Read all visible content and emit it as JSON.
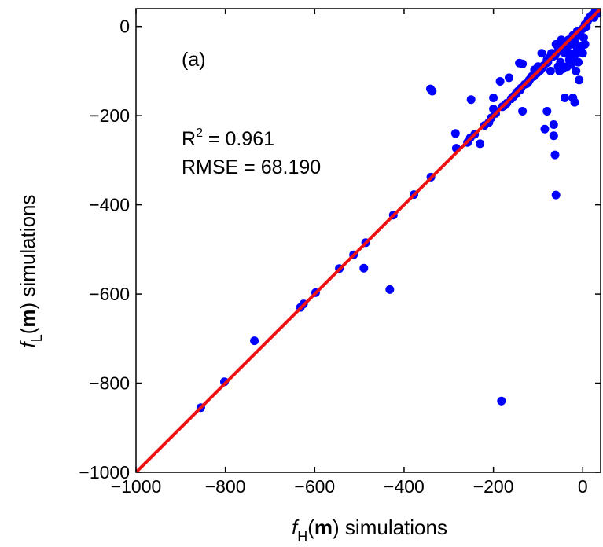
{
  "chart_data": {
    "type": "scatter",
    "panel_label": "(a)",
    "xlabel": {
      "f": "f",
      "sub": "H",
      "open": "(",
      "m": "m",
      "close": ") simulations"
    },
    "ylabel": {
      "f": "f",
      "sub": "L",
      "open": "(",
      "m": "m",
      "close": ") simulations"
    },
    "xlim": [
      -1000,
      40
    ],
    "ylim": [
      -1000,
      40
    ],
    "xticks": [
      -1000,
      -800,
      -600,
      -400,
      -200,
      0
    ],
    "yticks": [
      -1000,
      -800,
      -600,
      -400,
      -200,
      0
    ],
    "xtick_labels": [
      "−1000",
      "−800",
      "−600",
      "−400",
      "−200",
      "0"
    ],
    "ytick_labels": [
      "−1000",
      "−800",
      "−600",
      "−400",
      "−200",
      "0"
    ],
    "grid": false,
    "stats": {
      "r2_base": "R",
      "r2_sup": "2",
      "r2_value": " = 0.961",
      "rmse": "RMSE = 68.190"
    },
    "colors": {
      "points": "#0000ff",
      "fit_line": "#ee1111",
      "axes": "#000000"
    },
    "fit_line": {
      "x": [
        -1000,
        40
      ],
      "y": [
        -1000,
        40
      ]
    },
    "points": [
      [
        -855,
        -855
      ],
      [
        -802,
        -797
      ],
      [
        -735,
        -705
      ],
      [
        -632,
        -630
      ],
      [
        -625,
        -622
      ],
      [
        -598,
        -597
      ],
      [
        -545,
        -543
      ],
      [
        -513,
        -512
      ],
      [
        -490,
        -542
      ],
      [
        -486,
        -485
      ],
      [
        -432,
        -590
      ],
      [
        -424,
        -423
      ],
      [
        -378,
        -377
      ],
      [
        -340,
        -338
      ],
      [
        -341,
        -140
      ],
      [
        -337,
        -145
      ],
      [
        -283,
        -273
      ],
      [
        -285,
        -240
      ],
      [
        -258,
        -260
      ],
      [
        -252,
        -250
      ],
      [
        -250,
        -164
      ],
      [
        -242,
        -242
      ],
      [
        -230,
        -263
      ],
      [
        -220,
        -222
      ],
      [
        -210,
        -215
      ],
      [
        -205,
        -205
      ],
      [
        -200,
        -160
      ],
      [
        -200,
        -185
      ],
      [
        -195,
        -195
      ],
      [
        -185,
        -123
      ],
      [
        -182,
        -840
      ],
      [
        -180,
        -180
      ],
      [
        -175,
        -177
      ],
      [
        -170,
        -172
      ],
      [
        -165,
        -115
      ],
      [
        -160,
        -162
      ],
      [
        -155,
        -157
      ],
      [
        -150,
        -152
      ],
      [
        -148,
        -148
      ],
      [
        -145,
        -145
      ],
      [
        -142,
        -82
      ],
      [
        -140,
        -142
      ],
      [
        -138,
        -138
      ],
      [
        -135,
        -190
      ],
      [
        -135,
        -84
      ],
      [
        -130,
        -130
      ],
      [
        -125,
        -128
      ],
      [
        -122,
        -125
      ],
      [
        -120,
        -120
      ],
      [
        -118,
        -118
      ],
      [
        -115,
        -113
      ],
      [
        -112,
        -110
      ],
      [
        -110,
        -112
      ],
      [
        -108,
        -97
      ],
      [
        -105,
        -105
      ],
      [
        -102,
        -104
      ],
      [
        -100,
        -90
      ],
      [
        -98,
        -100
      ],
      [
        -95,
        -98
      ],
      [
        -92,
        -60
      ],
      [
        -90,
        -92
      ],
      [
        -88,
        -88
      ],
      [
        -85,
        -230
      ],
      [
        -82,
        -82
      ],
      [
        -80,
        -75
      ],
      [
        -80,
        -190
      ],
      [
        -78,
        -80
      ],
      [
        -75,
        -70
      ],
      [
        -72,
        -100
      ],
      [
        -70,
        -60
      ],
      [
        -68,
        -68
      ],
      [
        -65,
        -220
      ],
      [
        -65,
        -245
      ],
      [
        -62,
        -288
      ],
      [
        -62,
        -65
      ],
      [
        -60,
        -378
      ],
      [
        -60,
        -40
      ],
      [
        -58,
        -58
      ],
      [
        -55,
        -90
      ],
      [
        -55,
        -45
      ],
      [
        -52,
        -100
      ],
      [
        -50,
        -50
      ],
      [
        -50,
        -80
      ],
      [
        -48,
        -30
      ],
      [
        -45,
        -45
      ],
      [
        -45,
        -95
      ],
      [
        -42,
        -42
      ],
      [
        -40,
        -160
      ],
      [
        -40,
        -60
      ],
      [
        -38,
        -38
      ],
      [
        -35,
        -90
      ],
      [
        -35,
        -55
      ],
      [
        -32,
        -30
      ],
      [
        -30,
        -60
      ],
      [
        -30,
        -75
      ],
      [
        -28,
        -28
      ],
      [
        -25,
        -85
      ],
      [
        -25,
        -40
      ],
      [
        -22,
        -160
      ],
      [
        -22,
        -20
      ],
      [
        -20,
        -70
      ],
      [
        -20,
        -30
      ],
      [
        -18,
        -170
      ],
      [
        -18,
        -35
      ],
      [
        -15,
        -60
      ],
      [
        -15,
        -100
      ],
      [
        -12,
        -10
      ],
      [
        -12,
        -50
      ],
      [
        -10,
        -80
      ],
      [
        -8,
        -120
      ],
      [
        -8,
        -20
      ],
      [
        -5,
        -50
      ],
      [
        -5,
        -10
      ],
      [
        -3,
        -45
      ],
      [
        0,
        -5
      ],
      [
        0,
        -60
      ],
      [
        2,
        -25
      ],
      [
        5,
        5
      ],
      [
        5,
        -40
      ],
      [
        8,
        0
      ],
      [
        10,
        10
      ],
      [
        12,
        15
      ],
      [
        15,
        20
      ],
      [
        20,
        25
      ],
      [
        25,
        20
      ],
      [
        28,
        35
      ],
      [
        30,
        28
      ],
      [
        33,
        38
      ],
      [
        36,
        30
      ],
      [
        38,
        36
      ]
    ]
  }
}
